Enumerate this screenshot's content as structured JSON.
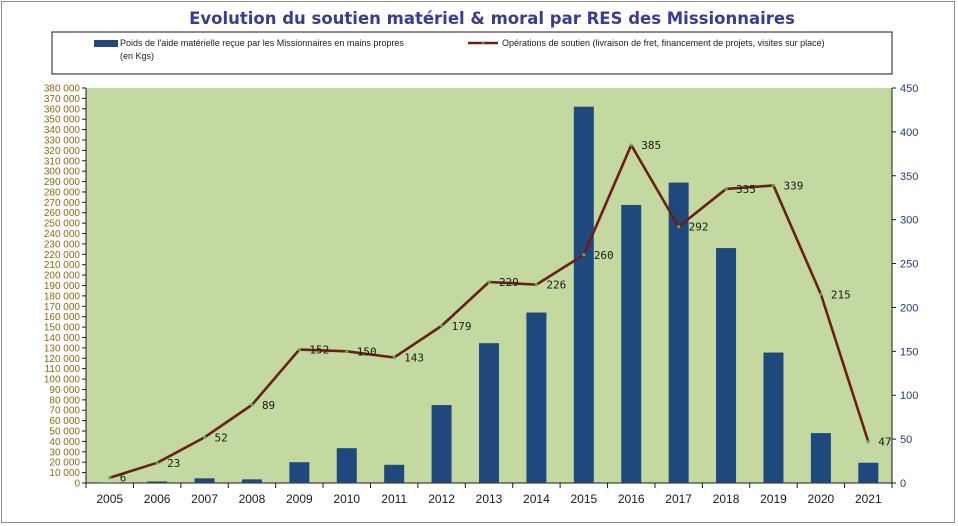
{
  "chart_data": {
    "type": "bar+line",
    "title": "Evolution du soutien matériel & moral par RES des Missionnaires",
    "categories": [
      "2005",
      "2006",
      "2007",
      "2008",
      "2009",
      "2010",
      "2011",
      "2012",
      "2013",
      "2014",
      "2015",
      "2016",
      "2017",
      "2018",
      "2019",
      "2020",
      "2021"
    ],
    "series": [
      {
        "name": "Poids de l'aide matérielle reçue par les Missionnaires en mains propres (en Kgs)",
        "kind": "bar",
        "axis": "left",
        "color": "#1f497d",
        "values": [
          500,
          1500,
          4500,
          3500,
          20000,
          33500,
          17500,
          75000,
          134500,
          164000,
          362000,
          267500,
          289000,
          226000,
          125500,
          48000,
          19500
        ]
      },
      {
        "name": "Opérations de soutien (livraison de fret, financement de projets, visites sur place)",
        "kind": "line",
        "axis": "right",
        "color": "#6b1f1a",
        "values": [
          6,
          23,
          52,
          89,
          152,
          150,
          143,
          179,
          229,
          226,
          260,
          385,
          292,
          335,
          339,
          215,
          47
        ],
        "labels": [
          "6",
          "23",
          "52",
          "89",
          "152",
          "150",
          "143",
          "179",
          "229",
          "226",
          "260",
          "385",
          "292",
          "335",
          "339",
          "215",
          "47"
        ]
      }
    ],
    "y_left": {
      "min": 0,
      "max": 380000,
      "step": 10000,
      "tick_labels": [
        "0",
        "10 000",
        "20 000",
        "30 000",
        "40 000",
        "50 000",
        "60 000",
        "70 000",
        "80 000",
        "90 000",
        "100 000",
        "110 000",
        "120 000",
        "130 000",
        "140 000",
        "150 000",
        "160 000",
        "170 000",
        "180 000",
        "190 000",
        "200 000",
        "210 000",
        "220 000",
        "230 000",
        "240 000",
        "250 000",
        "260 000",
        "270 000",
        "280 000",
        "290 000",
        "300 000",
        "310 000",
        "320 000",
        "330 000",
        "340 000",
        "350 000",
        "360 000",
        "370 000",
        "380 000"
      ]
    },
    "y_right": {
      "min": 0,
      "max": 450,
      "step": 50,
      "tick_labels": [
        "0",
        "50",
        "100",
        "150",
        "200",
        "250",
        "300",
        "350",
        "400",
        "450"
      ]
    },
    "plot_background": "#c4d9a0",
    "legend_position": "top",
    "grid": false
  }
}
